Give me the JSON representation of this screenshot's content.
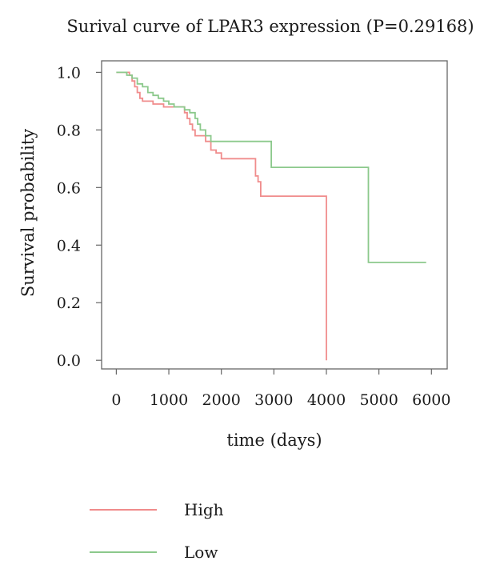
{
  "chart_data": {
    "type": "line",
    "title": "Surival curve of LPAR3 expression (P=0.29168)",
    "xlabel": "time (days)",
    "ylabel": "Survival probability",
    "xlim": [
      -280,
      6300
    ],
    "ylim": [
      -0.03,
      1.04
    ],
    "x_ticks": [
      0,
      1000,
      2000,
      3000,
      4000,
      5000,
      6000
    ],
    "x_tick_labels": [
      "0",
      "1000",
      "2000",
      "3000",
      "4000",
      "5000",
      "6000"
    ],
    "y_ticks": [
      0.0,
      0.2,
      0.4,
      0.6,
      0.8,
      1.0
    ],
    "y_tick_labels": [
      "0.0",
      "0.2",
      "0.4",
      "0.6",
      "0.8",
      "1.0"
    ],
    "grid": false,
    "legend_position": "bottom-left",
    "step": true,
    "series": [
      {
        "name": "High",
        "color": "#f08c8c",
        "x": [
          0,
          150,
          250,
          300,
          350,
          400,
          450,
          500,
          700,
          900,
          1100,
          1300,
          1350,
          1400,
          1450,
          1500,
          1700,
          1800,
          1900,
          2000,
          2650,
          2700,
          2750,
          4000
        ],
        "y": [
          1.0,
          1.0,
          0.99,
          0.97,
          0.95,
          0.93,
          0.91,
          0.9,
          0.89,
          0.88,
          0.88,
          0.86,
          0.84,
          0.82,
          0.8,
          0.78,
          0.76,
          0.73,
          0.72,
          0.7,
          0.64,
          0.62,
          0.57,
          0.0
        ]
      },
      {
        "name": "Low",
        "color": "#8cc98c",
        "x": [
          0,
          200,
          300,
          400,
          500,
          600,
          700,
          800,
          900,
          1000,
          1100,
          1300,
          1400,
          1500,
          1550,
          1600,
          1700,
          1800,
          2950,
          4800,
          5900
        ],
        "y": [
          1.0,
          0.99,
          0.98,
          0.96,
          0.95,
          0.93,
          0.92,
          0.91,
          0.9,
          0.89,
          0.88,
          0.87,
          0.86,
          0.84,
          0.82,
          0.8,
          0.78,
          0.76,
          0.67,
          0.34,
          0.34
        ]
      }
    ]
  }
}
